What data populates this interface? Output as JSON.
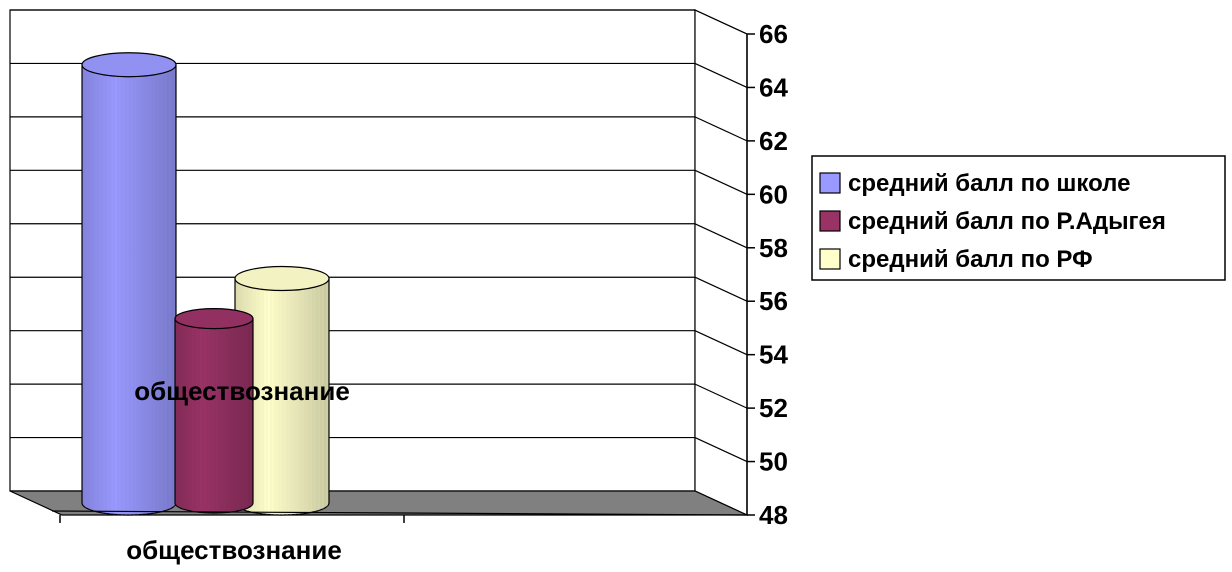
{
  "chart_data": {
    "type": "bar",
    "style": "3d-cylinder",
    "categories": [
      "обществознание"
    ],
    "series": [
      {
        "name": "средний балл по школе",
        "values": [
          64.7
        ],
        "color": "#9999ff"
      },
      {
        "name": "средний балл по Р.Адыгея",
        "values": [
          55.2
        ],
        "color": "#993366"
      },
      {
        "name": "средний балл по РФ",
        "values": [
          56.7
        ],
        "color": "#ffffcc"
      }
    ],
    "ylim": [
      48,
      66
    ],
    "yticks": [
      48,
      50,
      52,
      54,
      56,
      58,
      60,
      62,
      64,
      66
    ],
    "y_axis_side": "right",
    "grid": true,
    "legend_position": "right",
    "data_label": "обществознание",
    "category_label": "обществознание"
  }
}
